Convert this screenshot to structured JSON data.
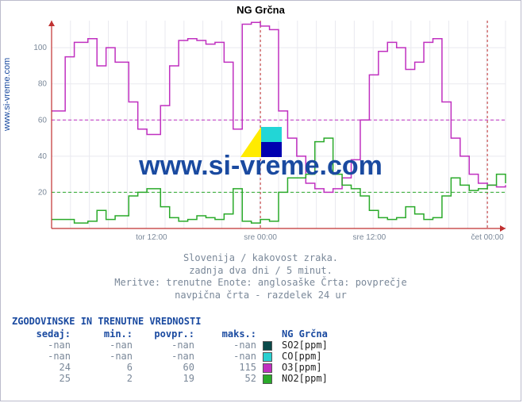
{
  "title": "NG Grčna",
  "watermark": "www.si-vreme.com",
  "y_axis_label": "www.si-vreme.com",
  "chart": {
    "type": "line",
    "background_color": "#ffffff",
    "grid_color": "#e9e9ef",
    "axis_color": "#c03030",
    "text_color": "#7a8899",
    "ylim": [
      0,
      115
    ],
    "yticks": [
      20,
      40,
      60,
      80,
      100
    ],
    "ytick_fontsize": 10,
    "xticks": [
      "tor 12:00",
      "sre 00:00",
      "sre 12:00",
      "čet 00:00"
    ],
    "xtick_positions": [
      0.22,
      0.46,
      0.7,
      0.96
    ],
    "reference_lines": [
      {
        "y": 60,
        "color": "#c030c0",
        "dash": "4 3"
      },
      {
        "y": 20,
        "color": "#2aaa2a",
        "dash": "4 3"
      }
    ],
    "vertical_dividers": [
      0.46,
      0.96
    ],
    "series": [
      {
        "name": "O3",
        "color": "#c030c0",
        "width": 1.5,
        "points": [
          [
            0.0,
            65
          ],
          [
            0.03,
            95
          ],
          [
            0.05,
            103
          ],
          [
            0.08,
            105
          ],
          [
            0.1,
            90
          ],
          [
            0.12,
            100
          ],
          [
            0.14,
            92
          ],
          [
            0.17,
            70
          ],
          [
            0.19,
            55
          ],
          [
            0.21,
            52
          ],
          [
            0.24,
            68
          ],
          [
            0.26,
            90
          ],
          [
            0.28,
            104
          ],
          [
            0.3,
            105
          ],
          [
            0.32,
            104
          ],
          [
            0.34,
            102
          ],
          [
            0.36,
            103
          ],
          [
            0.38,
            92
          ],
          [
            0.4,
            55
          ],
          [
            0.42,
            113
          ],
          [
            0.44,
            114
          ],
          [
            0.46,
            112
          ],
          [
            0.48,
            110
          ],
          [
            0.5,
            65
          ],
          [
            0.52,
            50
          ],
          [
            0.54,
            40
          ],
          [
            0.56,
            25
          ],
          [
            0.58,
            22
          ],
          [
            0.6,
            20
          ],
          [
            0.62,
            22
          ],
          [
            0.64,
            28
          ],
          [
            0.66,
            38
          ],
          [
            0.68,
            60
          ],
          [
            0.7,
            85
          ],
          [
            0.72,
            98
          ],
          [
            0.74,
            103
          ],
          [
            0.76,
            100
          ],
          [
            0.78,
            88
          ],
          [
            0.8,
            92
          ],
          [
            0.82,
            103
          ],
          [
            0.84,
            105
          ],
          [
            0.86,
            70
          ],
          [
            0.88,
            50
          ],
          [
            0.9,
            40
          ],
          [
            0.92,
            30
          ],
          [
            0.94,
            25
          ],
          [
            0.96,
            24
          ],
          [
            0.98,
            23
          ],
          [
            1.0,
            24
          ]
        ]
      },
      {
        "name": "NO2",
        "color": "#2aaa2a",
        "width": 1.5,
        "points": [
          [
            0.0,
            5
          ],
          [
            0.03,
            5
          ],
          [
            0.05,
            3
          ],
          [
            0.08,
            4
          ],
          [
            0.1,
            10
          ],
          [
            0.12,
            5
          ],
          [
            0.14,
            7
          ],
          [
            0.17,
            18
          ],
          [
            0.19,
            20
          ],
          [
            0.21,
            22
          ],
          [
            0.24,
            12
          ],
          [
            0.26,
            6
          ],
          [
            0.28,
            4
          ],
          [
            0.3,
            5
          ],
          [
            0.32,
            7
          ],
          [
            0.34,
            6
          ],
          [
            0.36,
            5
          ],
          [
            0.38,
            8
          ],
          [
            0.4,
            22
          ],
          [
            0.42,
            4
          ],
          [
            0.44,
            3
          ],
          [
            0.46,
            5
          ],
          [
            0.48,
            4
          ],
          [
            0.5,
            20
          ],
          [
            0.52,
            28
          ],
          [
            0.54,
            28
          ],
          [
            0.56,
            30
          ],
          [
            0.58,
            48
          ],
          [
            0.6,
            50
          ],
          [
            0.62,
            30
          ],
          [
            0.64,
            24
          ],
          [
            0.66,
            22
          ],
          [
            0.68,
            18
          ],
          [
            0.7,
            10
          ],
          [
            0.72,
            6
          ],
          [
            0.74,
            5
          ],
          [
            0.76,
            6
          ],
          [
            0.78,
            12
          ],
          [
            0.8,
            8
          ],
          [
            0.82,
            5
          ],
          [
            0.84,
            6
          ],
          [
            0.86,
            18
          ],
          [
            0.88,
            28
          ],
          [
            0.9,
            24
          ],
          [
            0.92,
            21
          ],
          [
            0.94,
            22
          ],
          [
            0.96,
            24
          ],
          [
            0.98,
            30
          ],
          [
            1.0,
            25
          ]
        ]
      }
    ]
  },
  "caption": {
    "line1": "Slovenija / kakovost zraka.",
    "line2": "zadnja dva dni / 5 minut.",
    "line3": "Meritve: trenutne  Enote: anglosaške  Črta: povprečje",
    "line4": "navpična črta - razdelek 24 ur"
  },
  "table": {
    "title": "ZGODOVINSKE IN TRENUTNE VREDNOSTI",
    "headers": [
      "sedaj:",
      "min.:",
      "povpr.:",
      "maks.:"
    ],
    "series_header": "NG Grčna",
    "rows": [
      {
        "values": [
          "-nan",
          "-nan",
          "-nan",
          "-nan"
        ],
        "swatch": "#0a4a4a",
        "label": "SO2[ppm]"
      },
      {
        "values": [
          "-nan",
          "-nan",
          "-nan",
          "-nan"
        ],
        "swatch": "#2ad0d0",
        "label": "CO[ppm]"
      },
      {
        "values": [
          "24",
          "6",
          "60",
          "115"
        ],
        "swatch": "#c030c0",
        "label": "O3[ppm]"
      },
      {
        "values": [
          "25",
          "2",
          "19",
          "52"
        ],
        "swatch": "#2aaa2a",
        "label": "NO2[ppm]"
      }
    ],
    "value_color": "#7a8899"
  },
  "logo": {
    "colors": [
      "#0000b0",
      "#ffeb00",
      "#22d6d6",
      "#0000b0"
    ]
  }
}
